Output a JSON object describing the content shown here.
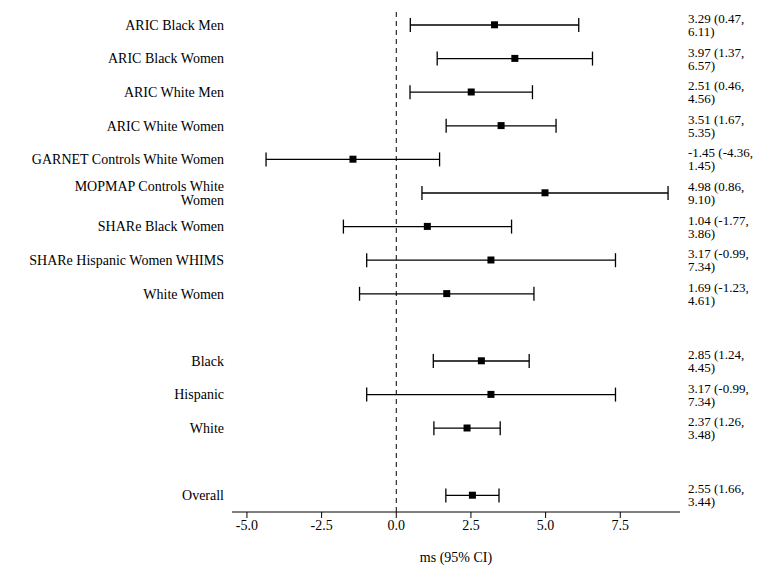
{
  "chart_data": {
    "type": "forest",
    "xlabel": "ms (95% CI)",
    "categories": [
      "ARIC Black Men",
      "ARIC Black Women",
      "ARIC White Men",
      "ARIC White Women",
      "GARNET Controls White Women",
      "MOPMAP Controls White Women",
      "SHARe Black Women",
      "SHARe Hispanic Women WHIMS",
      "White Women",
      null,
      "Black",
      "Hispanic",
      "White",
      null,
      "Overall"
    ],
    "values": [
      3.29,
      3.97,
      2.51,
      3.51,
      -1.45,
      4.98,
      1.04,
      3.17,
      1.69,
      null,
      2.85,
      3.17,
      2.37,
      null,
      2.55
    ],
    "lower": [
      0.47,
      1.37,
      0.46,
      1.67,
      -4.36,
      0.86,
      -1.77,
      -0.99,
      -1.23,
      null,
      1.24,
      -0.99,
      1.26,
      null,
      1.66
    ],
    "upper": [
      6.11,
      6.57,
      4.56,
      5.35,
      1.45,
      9.1,
      3.86,
      7.34,
      4.61,
      null,
      4.45,
      7.34,
      3.48,
      null,
      3.44
    ],
    "value_labels": [
      "3.29 (0.47, 6.11)",
      "3.97 (1.37, 6.57)",
      "2.51 (0.46, 4.56)",
      "3.51 (1.67, 5.35)",
      "-1.45 (-4.36, 1.45)",
      "4.98 (0.86, 9.10)",
      "1.04 (-1.77, 3.86)",
      "3.17 (-0.99, 7.34)",
      "1.69 (-1.23, 4.61)",
      null,
      "2.85 (1.24, 4.45)",
      "3.17 (-0.99, 7.34)",
      "2.37 (1.26, 3.48)",
      null,
      "2.55 (1.66, 3.44)"
    ],
    "xlim": [
      -5.5,
      9.5
    ],
    "xticks": [
      {
        "value": -5,
        "label": "-5.0"
      },
      {
        "value": -2.5,
        "label": "-2.5"
      },
      {
        "value": 0,
        "label": "0.0"
      },
      {
        "value": 2.5,
        "label": "2.5"
      },
      {
        "value": 5,
        "label": "5.0"
      },
      {
        "value": 7.5,
        "label": "7.5"
      }
    ],
    "reference_line": 0,
    "color": "#000000",
    "marker": "square",
    "grid": false
  }
}
